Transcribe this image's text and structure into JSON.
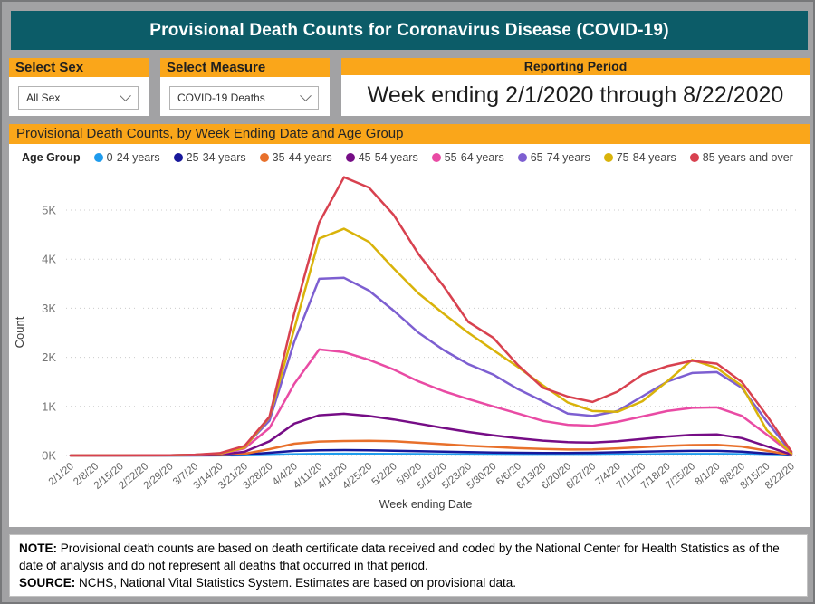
{
  "header": {
    "title": "Provisional Death Counts for Coronavirus Disease (COVID-19)"
  },
  "filters": {
    "sex": {
      "label": "Select Sex",
      "value": "All Sex"
    },
    "measure": {
      "label": "Select Measure",
      "value": "COVID-19 Deaths"
    }
  },
  "reporting_period": {
    "label": "Reporting Period",
    "value": "Week ending 2/1/2020 through 8/22/2020"
  },
  "chart_section": {
    "title": "Provisional Death Counts, by Week Ending Date and Age Group",
    "legend_title": "Age Group"
  },
  "chart_data": {
    "type": "line",
    "title": "Provisional Death Counts, by Week Ending Date and Age Group",
    "xlabel": "Week ending Date",
    "ylabel": "Count",
    "grid": true,
    "legend_position": "top",
    "ylim": [
      0,
      5700
    ],
    "y_ticks": [
      "0K",
      "1K",
      "2K",
      "3K",
      "4K",
      "5K"
    ],
    "x": [
      "2/1/20",
      "2/8/20",
      "2/15/20",
      "2/22/20",
      "2/29/20",
      "3/7/20",
      "3/14/20",
      "3/21/20",
      "3/28/20",
      "4/4/20",
      "4/11/20",
      "4/18/20",
      "4/25/20",
      "5/2/20",
      "5/9/20",
      "5/16/20",
      "5/23/20",
      "5/30/20",
      "6/6/20",
      "6/13/20",
      "6/20/20",
      "6/27/20",
      "7/4/20",
      "7/11/20",
      "7/18/20",
      "7/25/20",
      "8/1/20",
      "8/8/20",
      "8/15/20",
      "8/22/20"
    ],
    "series": [
      {
        "name": "0-24 years",
        "color": "#1e9bed",
        "values": [
          0,
          0,
          0,
          0,
          0,
          1,
          2,
          5,
          15,
          25,
          32,
          35,
          33,
          30,
          27,
          24,
          21,
          19,
          17,
          16,
          16,
          17,
          20,
          24,
          27,
          30,
          30,
          25,
          14,
          2
        ]
      },
      {
        "name": "25-34 years",
        "color": "#18189b",
        "values": [
          0,
          0,
          0,
          1,
          1,
          2,
          5,
          18,
          55,
          95,
          105,
          110,
          105,
          98,
          88,
          78,
          68,
          60,
          55,
          52,
          52,
          56,
          66,
          78,
          88,
          95,
          95,
          78,
          42,
          5
        ]
      },
      {
        "name": "35-44 years",
        "color": "#e8702b",
        "values": [
          0,
          0,
          1,
          1,
          2,
          5,
          10,
          35,
          130,
          240,
          285,
          295,
          300,
          290,
          260,
          230,
          200,
          175,
          150,
          132,
          122,
          126,
          146,
          172,
          196,
          212,
          215,
          182,
          98,
          10
        ]
      },
      {
        "name": "45-54 years",
        "color": "#760d86",
        "values": [
          0,
          0,
          1,
          1,
          3,
          7,
          18,
          75,
          290,
          650,
          820,
          850,
          805,
          735,
          650,
          560,
          480,
          410,
          350,
          302,
          272,
          262,
          292,
          335,
          385,
          420,
          430,
          355,
          188,
          20
        ]
      },
      {
        "name": "55-64 years",
        "color": "#e94ba4",
        "values": [
          0,
          1,
          1,
          2,
          3,
          10,
          32,
          145,
          560,
          1460,
          2160,
          2105,
          1950,
          1750,
          1510,
          1310,
          1150,
          1000,
          855,
          705,
          625,
          605,
          685,
          795,
          905,
          970,
          980,
          808,
          430,
          40
        ]
      },
      {
        "name": "65-74 years",
        "color": "#7d5fd1",
        "values": [
          0,
          1,
          1,
          2,
          4,
          12,
          42,
          185,
          710,
          2320,
          3600,
          3620,
          3360,
          2950,
          2500,
          2150,
          1860,
          1650,
          1350,
          1105,
          855,
          805,
          905,
          1205,
          1505,
          1680,
          1700,
          1380,
          700,
          58
        ]
      },
      {
        "name": "75-84 years",
        "color": "#d9b30a",
        "values": [
          0,
          1,
          2,
          2,
          4,
          14,
          38,
          165,
          780,
          2580,
          4420,
          4620,
          4350,
          3810,
          3300,
          2890,
          2500,
          2150,
          1800,
          1430,
          1080,
          905,
          890,
          1105,
          1510,
          1950,
          1780,
          1420,
          520,
          45
        ]
      },
      {
        "name": "85 years and over",
        "color": "#d8414f",
        "values": [
          0,
          1,
          2,
          3,
          5,
          16,
          48,
          195,
          790,
          2900,
          4750,
          5670,
          5460,
          4900,
          4100,
          3450,
          2720,
          2400,
          1840,
          1380,
          1200,
          1090,
          1300,
          1650,
          1820,
          1930,
          1870,
          1500,
          820,
          80
        ]
      }
    ]
  },
  "footer": {
    "note_label": "NOTE:",
    "note_text": " Provisional death counts are based on death certificate data received and coded by the National Center for Health Statistics as of the date of analysis and do not represent all deaths that occurred in that period.",
    "source_label": "SOURCE:",
    "source_text": " NCHS, National Vital Statistics System. Estimates are based on provisional data."
  },
  "colors": {
    "banner_teal": "#0c5c68",
    "accent_orange": "#faa61a",
    "page_background": "#a2a2a4",
    "grid_line": "#cccccc",
    "axis_tick_text": "#757575",
    "x_label_text": "#636363"
  }
}
